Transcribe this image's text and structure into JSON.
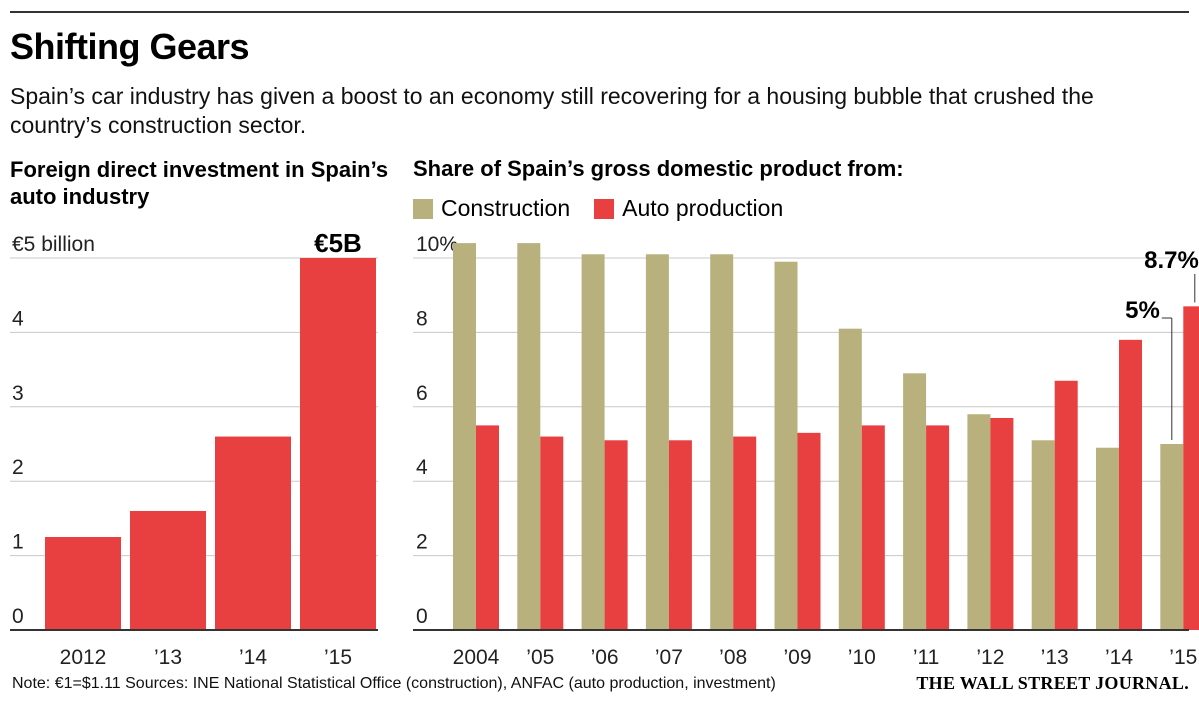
{
  "header": {
    "title": "Shifting Gears",
    "subtitle": "Spain’s car industry has given a boost to an economy still recovering for a housing bubble that crushed the country’s construction sector."
  },
  "footer": {
    "note": "Note: €1=$1.11   Sources: INE National Statistical Office (construction), ANFAC (auto production, investment)",
    "brand": "THE WALL STREET JOURNAL."
  },
  "colors": {
    "construction": "#b8b07d",
    "auto": "#e84040",
    "grid": "#c8c8c8",
    "axis": "#333333"
  },
  "chart_data": [
    {
      "type": "bar",
      "title": "Foreign direct investment in Spain’s auto industry",
      "categories": [
        "2012",
        "’13",
        "’14",
        "’15"
      ],
      "values": [
        1.25,
        1.6,
        2.6,
        5.0
      ],
      "y_unit_label": "€5 billion",
      "yticks": [
        "0",
        "1",
        "2",
        "3",
        "4",
        "€5 billion"
      ],
      "ylim": [
        0,
        5
      ],
      "grid": true,
      "annotations": [
        {
          "category": "’15",
          "label": "€5B"
        }
      ]
    },
    {
      "type": "bar",
      "title": "Share of Spain’s gross domestic product from:",
      "categories": [
        "2004",
        "’05",
        "’06",
        "’07",
        "’08",
        "’09",
        "’10",
        "’11",
        "’12",
        "’13",
        "’14",
        "’15"
      ],
      "series": [
        {
          "name": "Construction",
          "values": [
            10.4,
            10.4,
            10.1,
            10.1,
            10.1,
            9.9,
            8.1,
            6.9,
            5.8,
            5.1,
            4.9,
            5.0
          ]
        },
        {
          "name": "Auto production",
          "values": [
            5.5,
            5.2,
            5.1,
            5.1,
            5.2,
            5.3,
            5.5,
            5.5,
            5.7,
            6.7,
            7.8,
            8.7
          ]
        }
      ],
      "yticks": [
        "0",
        "2",
        "4",
        "6",
        "8",
        "10%"
      ],
      "ylim": [
        0,
        10
      ],
      "grid": true,
      "legend_position": "top-left",
      "annotations": [
        {
          "series": "Construction",
          "category": "’15",
          "label": "5%"
        },
        {
          "series": "Auto production",
          "category": "’15",
          "label": "8.7%"
        }
      ]
    }
  ]
}
